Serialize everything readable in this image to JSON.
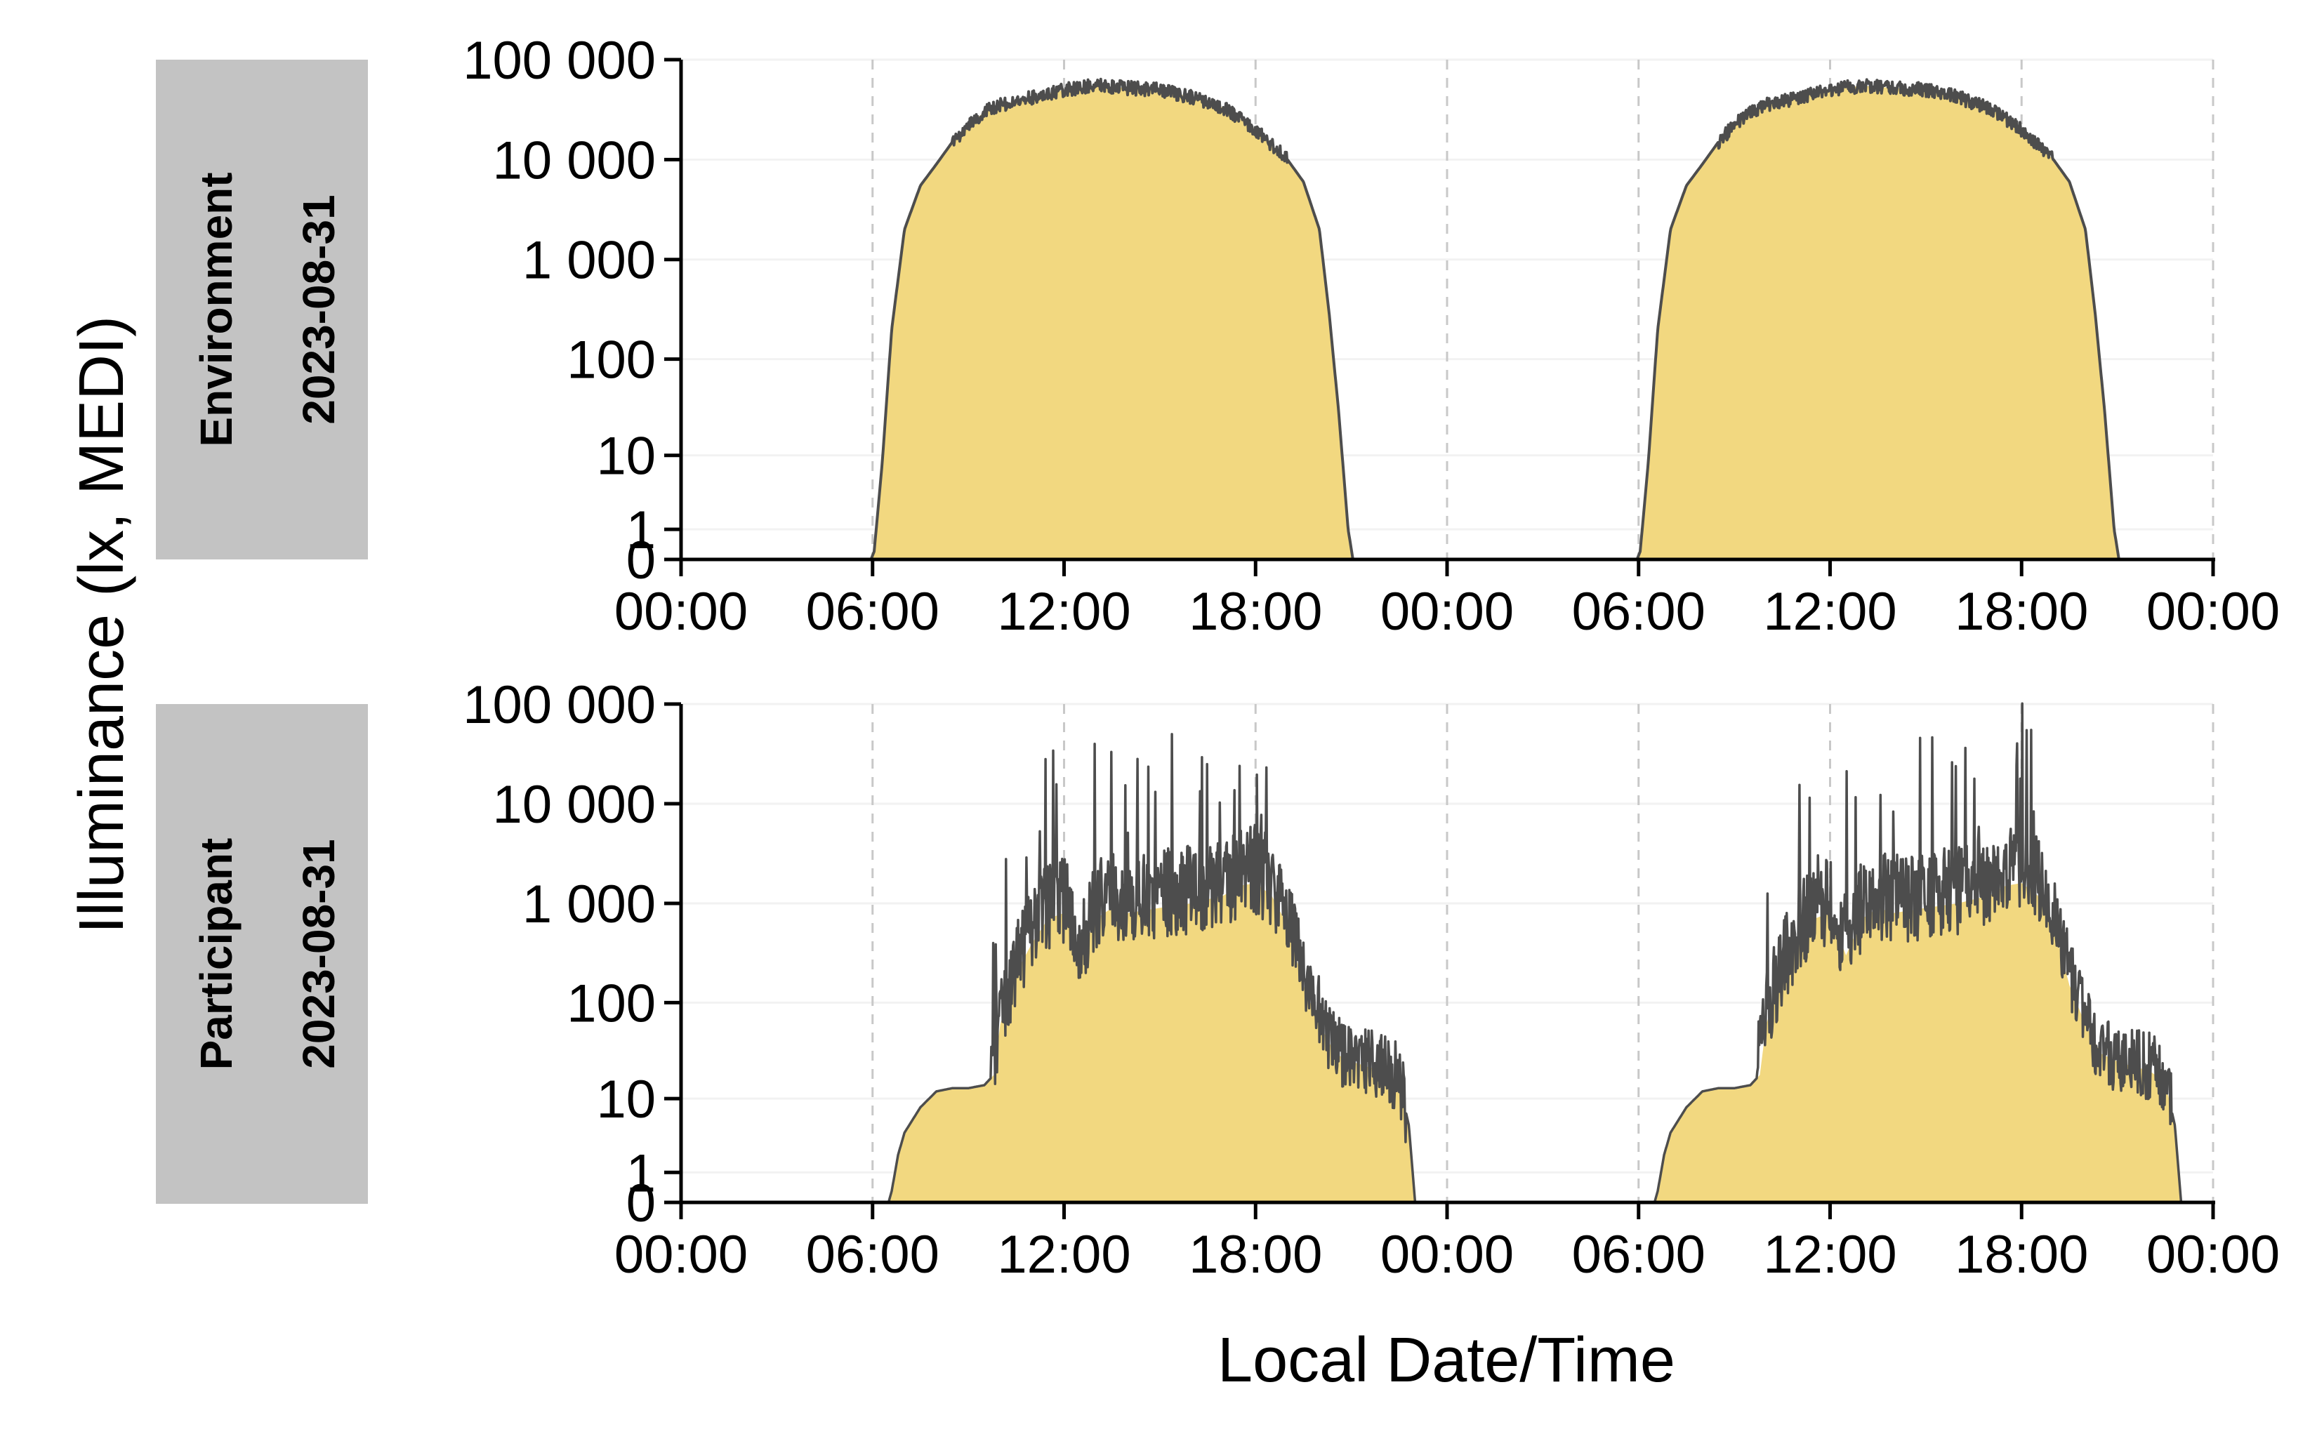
{
  "chart_data": {
    "type": "area",
    "ylabel": "Illuminance (lx, MEDI)",
    "xlabel": "Local Date/Time",
    "x_tick_labels": [
      "00:00",
      "06:00",
      "12:00",
      "18:00",
      "00:00",
      "06:00",
      "12:00",
      "18:00",
      "00:00"
    ],
    "x_range_hours": [
      0,
      48
    ],
    "y_scale": "symlog",
    "y_tick_values": [
      0,
      1,
      10,
      100,
      1000,
      10000,
      100000
    ],
    "y_tick_labels": [
      "0",
      "1",
      "10",
      "100",
      "1 000",
      "10 000",
      "100 000"
    ],
    "colors": {
      "fill": "#F2D880",
      "line": "#4D4D4D",
      "strip": "#C3C3C3"
    },
    "panels": [
      {
        "strip": [
          "Environment",
          "2023-08-31"
        ],
        "profile_hours": [
          5.95,
          6.05,
          6.3,
          6.6,
          7.0,
          7.5,
          8.0,
          8.5,
          9.0,
          9.5,
          10.0,
          11.0,
          12.0,
          13.0,
          14.0,
          15.0,
          16.0,
          17.0,
          18.0,
          19.0,
          19.5,
          20.0,
          20.3,
          20.6,
          20.9,
          21.05
        ],
        "profile_lux": [
          0,
          0.2,
          8,
          200,
          2000,
          5500,
          9000,
          15000,
          22000,
          30000,
          35000,
          42000,
          50000,
          55000,
          52000,
          50000,
          42000,
          33000,
          20000,
          10000,
          6000,
          2000,
          300,
          30,
          1,
          0
        ]
      },
      {
        "strip": [
          "Participant",
          "2023-08-31"
        ],
        "profile_hours": [
          6.5,
          6.6,
          6.8,
          7.0,
          7.5,
          8.0,
          8.5,
          9.0,
          9.5,
          9.8,
          10.0,
          10.5,
          11.0,
          11.5,
          12.0,
          12.5,
          13.0,
          13.5,
          14.0,
          15.0,
          16.0,
          17.0,
          17.5,
          18.0,
          18.5,
          19.0,
          19.5,
          20.0,
          20.5,
          21.0,
          21.5,
          22.0,
          22.5,
          22.8,
          23.0
        ],
        "profile_lux": [
          0,
          0.3,
          2,
          4,
          8,
          12,
          13,
          13,
          14,
          18,
          60,
          200,
          400,
          700,
          800,
          300,
          700,
          900,
          800,
          900,
          1000,
          1200,
          1500,
          1600,
          1200,
          600,
          150,
          60,
          30,
          25,
          22,
          20,
          15,
          5,
          0
        ]
      }
    ]
  }
}
